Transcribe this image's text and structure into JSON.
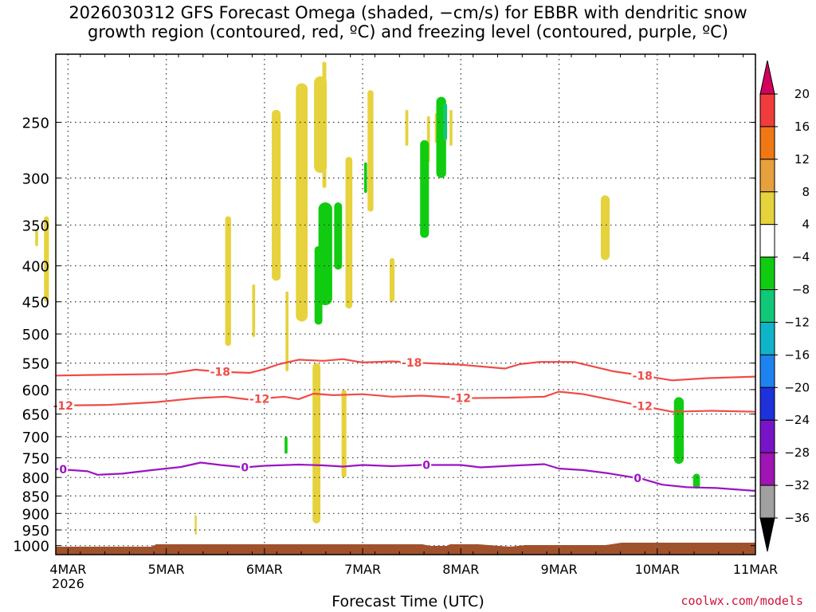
{
  "title_line1": "2026030312 GFS Forecast Omega (shaded, −cm/s) for EBBR with dendritic snow",
  "title_line2": "growth region (contoured, red, ºC) and freezing level (contoured, purple, ºC)",
  "credit": "coolwx.com/models",
  "chart_data": {
    "type": "heatmap",
    "title": "2026030312 GFS Forecast Omega (shaded, −cm/s) for EBBR with dendritic snow growth region (contoured, red, ºC) and freezing level (contoured, purple, ºC)",
    "xlabel": "Forecast Time (UTC)",
    "ylabel": "",
    "x_ticks": [
      {
        "value": 0,
        "label": "4MAR",
        "sublabel": "2026"
      },
      {
        "value": 1,
        "label": "5MAR",
        "sublabel": ""
      },
      {
        "value": 2,
        "label": "6MAR",
        "sublabel": ""
      },
      {
        "value": 3,
        "label": "7MAR",
        "sublabel": ""
      },
      {
        "value": 4,
        "label": "8MAR",
        "sublabel": ""
      },
      {
        "value": 5,
        "label": "9MAR",
        "sublabel": ""
      },
      {
        "value": 6,
        "label": "10MAR",
        "sublabel": ""
      },
      {
        "value": 7,
        "label": "11MAR",
        "sublabel": ""
      }
    ],
    "x_range": [
      -0.125,
      7.0
    ],
    "y_scale": "log-pressure (hPa, reversed)",
    "y_range": [
      1030,
      200
    ],
    "y_ticks": [
      250,
      300,
      350,
      400,
      450,
      500,
      550,
      600,
      650,
      700,
      750,
      800,
      850,
      900,
      950,
      1000
    ],
    "grid": true,
    "colorbar": {
      "labels": [
        "20",
        "16",
        "12",
        "8",
        "4",
        "−4",
        "−8",
        "−12",
        "−16",
        "−20",
        "−24",
        "−28",
        "−32",
        "−36"
      ],
      "colors": [
        "#d3005c",
        "#f03c3c",
        "#f07814",
        "#e6a03c",
        "#e6d23c",
        "#ffffff",
        "#10cc10",
        "#10c878",
        "#10b4c8",
        "#1e82f0",
        "#1e32dc",
        "#7814c8",
        "#a014b4",
        "#a0a0a0",
        "#000000"
      ]
    },
    "contours": [
      {
        "name": "-18",
        "color": "#f04b46",
        "labels": [
          {
            "x": 1.55,
            "text": "-18"
          },
          {
            "x": 3.5,
            "text": "-18"
          },
          {
            "x": 5.85,
            "text": "-18"
          }
        ],
        "points": [
          [
            -0.125,
            573
          ],
          [
            0.2,
            572
          ],
          [
            1.0,
            570
          ],
          [
            1.3,
            562
          ],
          [
            1.55,
            566
          ],
          [
            1.85,
            568
          ],
          [
            2.0,
            561
          ],
          [
            2.15,
            552
          ],
          [
            2.35,
            544
          ],
          [
            2.6,
            546
          ],
          [
            2.8,
            543
          ],
          [
            3.0,
            549
          ],
          [
            3.3,
            547
          ],
          [
            3.5,
            549
          ],
          [
            4.0,
            553
          ],
          [
            4.45,
            560
          ],
          [
            4.6,
            552
          ],
          [
            4.8,
            548
          ],
          [
            5.15,
            548
          ],
          [
            5.55,
            565
          ],
          [
            5.85,
            573
          ],
          [
            6.15,
            582
          ],
          [
            6.5,
            578
          ],
          [
            7.0,
            575
          ]
        ]
      },
      {
        "name": "-12",
        "color": "#f04b46",
        "labels": [
          {
            "x": -0.05,
            "text": "-12"
          },
          {
            "x": 1.95,
            "text": "-12"
          },
          {
            "x": 4.0,
            "text": "-12"
          },
          {
            "x": 5.85,
            "text": "-12"
          }
        ],
        "points": [
          [
            -0.125,
            632
          ],
          [
            0.4,
            631
          ],
          [
            0.9,
            625
          ],
          [
            1.3,
            617
          ],
          [
            1.6,
            614
          ],
          [
            1.85,
            620
          ],
          [
            2.2,
            614
          ],
          [
            2.35,
            619
          ],
          [
            2.5,
            608
          ],
          [
            2.7,
            611
          ],
          [
            3.0,
            609
          ],
          [
            3.3,
            614
          ],
          [
            3.6,
            612
          ],
          [
            4.05,
            617
          ],
          [
            4.5,
            616
          ],
          [
            4.85,
            614
          ],
          [
            5.0,
            604
          ],
          [
            5.25,
            609
          ],
          [
            5.65,
            625
          ],
          [
            5.85,
            633
          ],
          [
            6.15,
            645
          ],
          [
            6.55,
            643
          ],
          [
            7.0,
            645
          ]
        ]
      },
      {
        "name": "0",
        "color": "#9b14c3",
        "labels": [
          {
            "x": -0.05,
            "text": "0"
          },
          {
            "x": 1.8,
            "text": "0"
          },
          {
            "x": 3.65,
            "text": "0"
          },
          {
            "x": 5.8,
            "text": "0"
          }
        ],
        "points": [
          [
            -0.125,
            778
          ],
          [
            0.2,
            784
          ],
          [
            0.3,
            793
          ],
          [
            0.55,
            790
          ],
          [
            0.85,
            781
          ],
          [
            1.15,
            773
          ],
          [
            1.35,
            762
          ],
          [
            1.55,
            768
          ],
          [
            1.8,
            774
          ],
          [
            2.0,
            770
          ],
          [
            2.35,
            767
          ],
          [
            2.6,
            769
          ],
          [
            2.8,
            772
          ],
          [
            3.0,
            768
          ],
          [
            3.3,
            771
          ],
          [
            3.6,
            768
          ],
          [
            4.0,
            768
          ],
          [
            4.2,
            774
          ],
          [
            4.5,
            770
          ],
          [
            4.85,
            766
          ],
          [
            5.0,
            777
          ],
          [
            5.25,
            781
          ],
          [
            5.5,
            789
          ],
          [
            5.85,
            804
          ],
          [
            6.05,
            819
          ],
          [
            6.3,
            826
          ],
          [
            6.6,
            828
          ],
          [
            7.0,
            836
          ]
        ]
      }
    ],
    "shaded_regions": [
      {
        "category": "4",
        "color": "#e6d23c",
        "cx": -0.22,
        "cy": 395,
        "w": 0.05,
        "h": 110
      },
      {
        "category": "4",
        "color": "#e6d23c",
        "cx": -0.32,
        "cy": 365,
        "w": 0.03,
        "h": 20
      },
      {
        "category": "4",
        "color": "#e6d23c",
        "cx": 1.3,
        "cy": 935,
        "w": 0.02,
        "h": 60
      },
      {
        "category": "4",
        "color": "#e6d23c",
        "cx": 1.63,
        "cy": 430,
        "w": 0.06,
        "h": 180
      },
      {
        "category": "4",
        "color": "#e6d23c",
        "cx": 1.89,
        "cy": 465,
        "w": 0.03,
        "h": 80
      },
      {
        "category": "4",
        "color": "#e6d23c",
        "cx": 2.12,
        "cy": 330,
        "w": 0.09,
        "h": 180
      },
      {
        "category": "4",
        "color": "#e6d23c",
        "cx": 2.23,
        "cy": 500,
        "w": 0.03,
        "h": 130
      },
      {
        "category": "4",
        "color": "#e6d23c",
        "cx": 2.38,
        "cy": 350,
        "w": 0.12,
        "h": 260
      },
      {
        "category": "4",
        "color": "#e6d23c",
        "cx": 2.57,
        "cy": 255,
        "w": 0.13,
        "h": 80
      },
      {
        "category": "4",
        "color": "#e6d23c",
        "cx": 2.61,
        "cy": 250,
        "w": 0.04,
        "h": 120
      },
      {
        "category": "4",
        "color": "#e6d23c",
        "cx": 2.53,
        "cy": 740,
        "w": 0.08,
        "h": 380
      },
      {
        "category": "4",
        "color": "#e6d23c",
        "cx": 2.81,
        "cy": 700,
        "w": 0.05,
        "h": 200
      },
      {
        "category": "4",
        "color": "#e6d23c",
        "cx": 2.86,
        "cy": 370,
        "w": 0.07,
        "h": 180
      },
      {
        "category": "4",
        "color": "#e6d23c",
        "cx": 3.08,
        "cy": 280,
        "w": 0.06,
        "h": 110
      },
      {
        "category": "4",
        "color": "#e6d23c",
        "cx": 3.3,
        "cy": 420,
        "w": 0.05,
        "h": 60
      },
      {
        "category": "4",
        "color": "#e6d23c",
        "cx": 3.45,
        "cy": 255,
        "w": 0.03,
        "h": 30
      },
      {
        "category": "4",
        "color": "#e6d23c",
        "cx": 3.67,
        "cy": 265,
        "w": 0.03,
        "h": 40
      },
      {
        "category": "4",
        "color": "#e6d23c",
        "cx": 3.75,
        "cy": 255,
        "w": 0.03,
        "h": 25
      },
      {
        "category": "4",
        "color": "#e6d23c",
        "cx": 3.9,
        "cy": 255,
        "w": 0.03,
        "h": 30
      },
      {
        "category": "4",
        "color": "#e6d23c",
        "cx": 5.47,
        "cy": 355,
        "w": 0.09,
        "h": 75
      },
      {
        "category": "-4",
        "color": "#10cc10",
        "cx": 2.22,
        "cy": 720,
        "w": 0.03,
        "h": 40
      },
      {
        "category": "-4",
        "color": "#10cc10",
        "cx": 2.62,
        "cy": 390,
        "w": 0.14,
        "h": 130
      },
      {
        "category": "-4",
        "color": "#10cc10",
        "cx": 2.55,
        "cy": 430,
        "w": 0.08,
        "h": 110
      },
      {
        "category": "-4",
        "color": "#10cc10",
        "cx": 2.75,
        "cy": 365,
        "w": 0.08,
        "h": 80
      },
      {
        "category": "-4",
        "color": "#10cc10",
        "cx": 3.03,
        "cy": 300,
        "w": 0.03,
        "h": 30
      },
      {
        "category": "-4",
        "color": "#10cc10",
        "cx": 3.63,
        "cy": 315,
        "w": 0.09,
        "h": 100
      },
      {
        "category": "-4",
        "color": "#10cc10",
        "cx": 3.8,
        "cy": 265,
        "w": 0.1,
        "h": 70
      },
      {
        "category": "-4",
        "color": "#10cc10",
        "cx": 6.22,
        "cy": 690,
        "w": 0.1,
        "h": 150
      },
      {
        "category": "-4",
        "color": "#10cc10",
        "cx": 6.4,
        "cy": 810,
        "w": 0.07,
        "h": 40
      },
      {
        "category": "-8",
        "color": "#10c878",
        "cx": 3.84,
        "cy": 250,
        "w": 0.04,
        "h": 30
      }
    ]
  }
}
